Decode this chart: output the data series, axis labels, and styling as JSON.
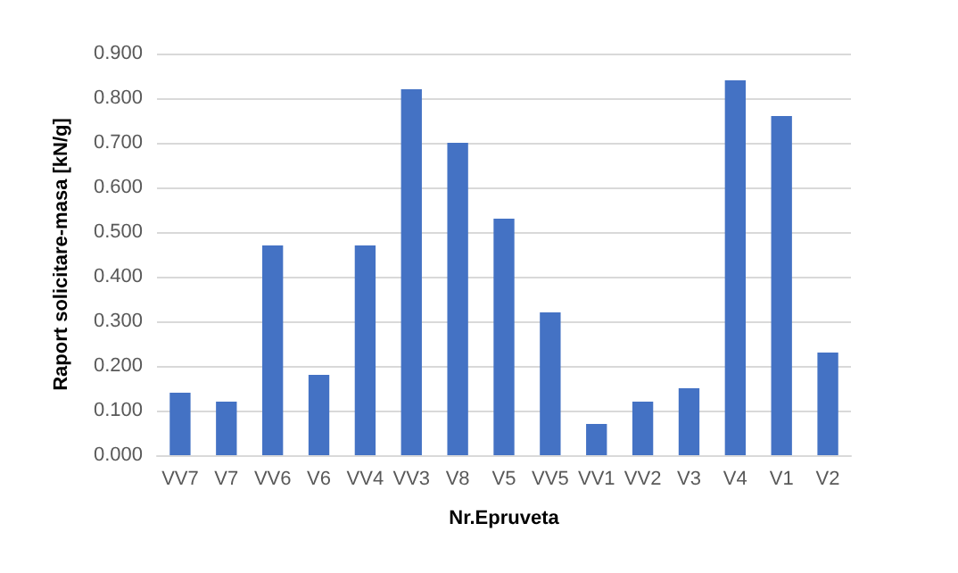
{
  "chart_data": {
    "type": "bar",
    "xlabel": "Nr.Epruveta",
    "ylabel": "Raport solicitare-masa [kN/g]",
    "categories": [
      "VV7",
      "V7",
      "VV6",
      "V6",
      "VV4",
      "VV3",
      "V8",
      "V5",
      "VV5",
      "VV1",
      "VV2",
      "V3",
      "V4",
      "V1",
      "V2"
    ],
    "values": [
      0.14,
      0.12,
      0.47,
      0.18,
      0.47,
      0.82,
      0.7,
      0.53,
      0.32,
      0.07,
      0.12,
      0.15,
      0.84,
      0.76,
      0.23
    ],
    "color": "#4472c4",
    "ylim": [
      0,
      0.9
    ],
    "yticks": [
      {
        "value": 0,
        "label": "0.000"
      },
      {
        "value": 0.1,
        "label": "0.100"
      },
      {
        "value": 0.2,
        "label": "0.200"
      },
      {
        "value": 0.3,
        "label": "0.300"
      },
      {
        "value": 0.4,
        "label": "0.400"
      },
      {
        "value": 0.5,
        "label": "0.500"
      },
      {
        "value": 0.6,
        "label": "0.600"
      },
      {
        "value": 0.7,
        "label": "0.700"
      },
      {
        "value": 0.8,
        "label": "0.800"
      },
      {
        "value": 0.9,
        "label": "0.900"
      }
    ],
    "grid": "y"
  }
}
